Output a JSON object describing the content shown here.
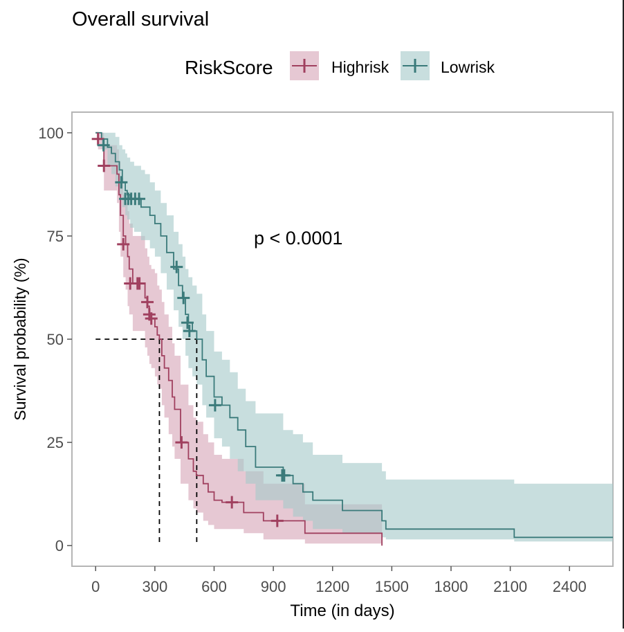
{
  "chart_data": {
    "type": "line",
    "title": "Overall survival",
    "xlabel": "Time (in days)",
    "ylabel": "Survival probability (%)",
    "xlim": [
      -120,
      2620
    ],
    "ylim": [
      -5,
      105
    ],
    "xticks": [
      0,
      300,
      600,
      900,
      1200,
      1500,
      1800,
      2100,
      2400
    ],
    "yticks": [
      0,
      25,
      50,
      75,
      100
    ],
    "x_tick_labels": [
      "0",
      "300",
      "600",
      "900",
      "1200",
      "1500",
      "1800",
      "2100",
      "2400"
    ],
    "y_tick_labels": [
      "0",
      "25",
      "50",
      "75",
      "100"
    ],
    "grid": false,
    "legend": {
      "title": "RiskScore",
      "position": "top"
    },
    "annotation": "p < 0.0001",
    "median_survival": [
      {
        "series": "Highrisk",
        "x": 323,
        "y": 50
      },
      {
        "series": "Lowrisk",
        "x": 512,
        "y": 50
      }
    ],
    "series": [
      {
        "name": "Highrisk",
        "color": "#a0405f",
        "band_color": "#d6a6b8",
        "x": [
          0,
          12,
          42,
          70,
          108,
          118,
          126,
          140,
          152,
          162,
          170,
          188,
          200,
          222,
          250,
          262,
          272,
          282,
          300,
          312,
          323,
          335,
          348,
          370,
          388,
          400,
          430,
          470,
          495,
          510,
          545,
          570,
          600,
          640,
          690,
          750,
          850,
          920,
          1060,
          1450
        ],
        "y": [
          100,
          98.5,
          92,
          92,
          90,
          85,
          80,
          75,
          73,
          70,
          67,
          63.5,
          63.5,
          63.5,
          60,
          58,
          56,
          55,
          53,
          51,
          50,
          46,
          43,
          40,
          36,
          33,
          25,
          21,
          18,
          17,
          15,
          13,
          11,
          10.5,
          10.5,
          8,
          6,
          6,
          3,
          0
        ],
        "upper": [
          100,
          100,
          97,
          97,
          96,
          93,
          89,
          85,
          83,
          81,
          78,
          75,
          75,
          75,
          72,
          70,
          68,
          67,
          66,
          63,
          62,
          59,
          56,
          53,
          49,
          46,
          39,
          34,
          31,
          30,
          27,
          25,
          22,
          21,
          21,
          18,
          15,
          15,
          10,
          10
        ],
        "lower": [
          100,
          96,
          86,
          86,
          83,
          76,
          70,
          65,
          62,
          58,
          56,
          52,
          52,
          52,
          48,
          46,
          44,
          43,
          41,
          39,
          38,
          34,
          31,
          27,
          24,
          21,
          15,
          11,
          9,
          8,
          6,
          5,
          4,
          4,
          4,
          3,
          1.5,
          1.5,
          0.5,
          0.5
        ],
        "censor_x": [
          12,
          42,
          140,
          175,
          212,
          222,
          262,
          272,
          282,
          435,
          690,
          920
        ],
        "censor_y": [
          98.5,
          92,
          73,
          63.5,
          63.5,
          63.5,
          59,
          56,
          55,
          25,
          10.5,
          6
        ]
      },
      {
        "name": "Lowrisk",
        "color": "#3a7a7a",
        "band_color": "#a6c9c9",
        "x": [
          0,
          30,
          60,
          80,
          100,
          120,
          135,
          150,
          160,
          175,
          195,
          215,
          230,
          250,
          275,
          300,
          330,
          360,
          395,
          420,
          440,
          455,
          470,
          490,
          512,
          540,
          560,
          600,
          640,
          680,
          720,
          760,
          810,
          950,
          1000,
          1050,
          1100,
          1250,
          1450,
          1470,
          1530,
          2120,
          2620
        ],
        "y": [
          100,
          98.5,
          96.5,
          95,
          93,
          91,
          88,
          86,
          85,
          84,
          84,
          84,
          82,
          82,
          80,
          78,
          75,
          71,
          67,
          63,
          60,
          56,
          54,
          52,
          50,
          45,
          41,
          36,
          34,
          31,
          28,
          24,
          19,
          17,
          15,
          13,
          11,
          8.5,
          6,
          4,
          4,
          2,
          2
        ],
        "upper": [
          100,
          100,
          100,
          100,
          99,
          97,
          96,
          95,
          94,
          93,
          92,
          92,
          91,
          90,
          88,
          86,
          83,
          80,
          76,
          73,
          70,
          67,
          65,
          63,
          61,
          56,
          52,
          47,
          45,
          42,
          38,
          35,
          32,
          28,
          27,
          25,
          22,
          20,
          18,
          16,
          16,
          15,
          15
        ],
        "lower": [
          100,
          96,
          92,
          90,
          87,
          85,
          82,
          80,
          79,
          77,
          76,
          76,
          74,
          74,
          72,
          70,
          66,
          62,
          57,
          53,
          50,
          46,
          43,
          41,
          39,
          34,
          31,
          26,
          24,
          21,
          18,
          15,
          11,
          9,
          7,
          6,
          4,
          3,
          2,
          1.5,
          1.5,
          1,
          1
        ],
        "censor_x": [
          40,
          130,
          150,
          165,
          180,
          200,
          220,
          410,
          445,
          465,
          475,
          605,
          945,
          955
        ],
        "censor_y": [
          97,
          88,
          84,
          84,
          84,
          84,
          84,
          67.5,
          60,
          54,
          52,
          34,
          17,
          17
        ]
      }
    ]
  }
}
